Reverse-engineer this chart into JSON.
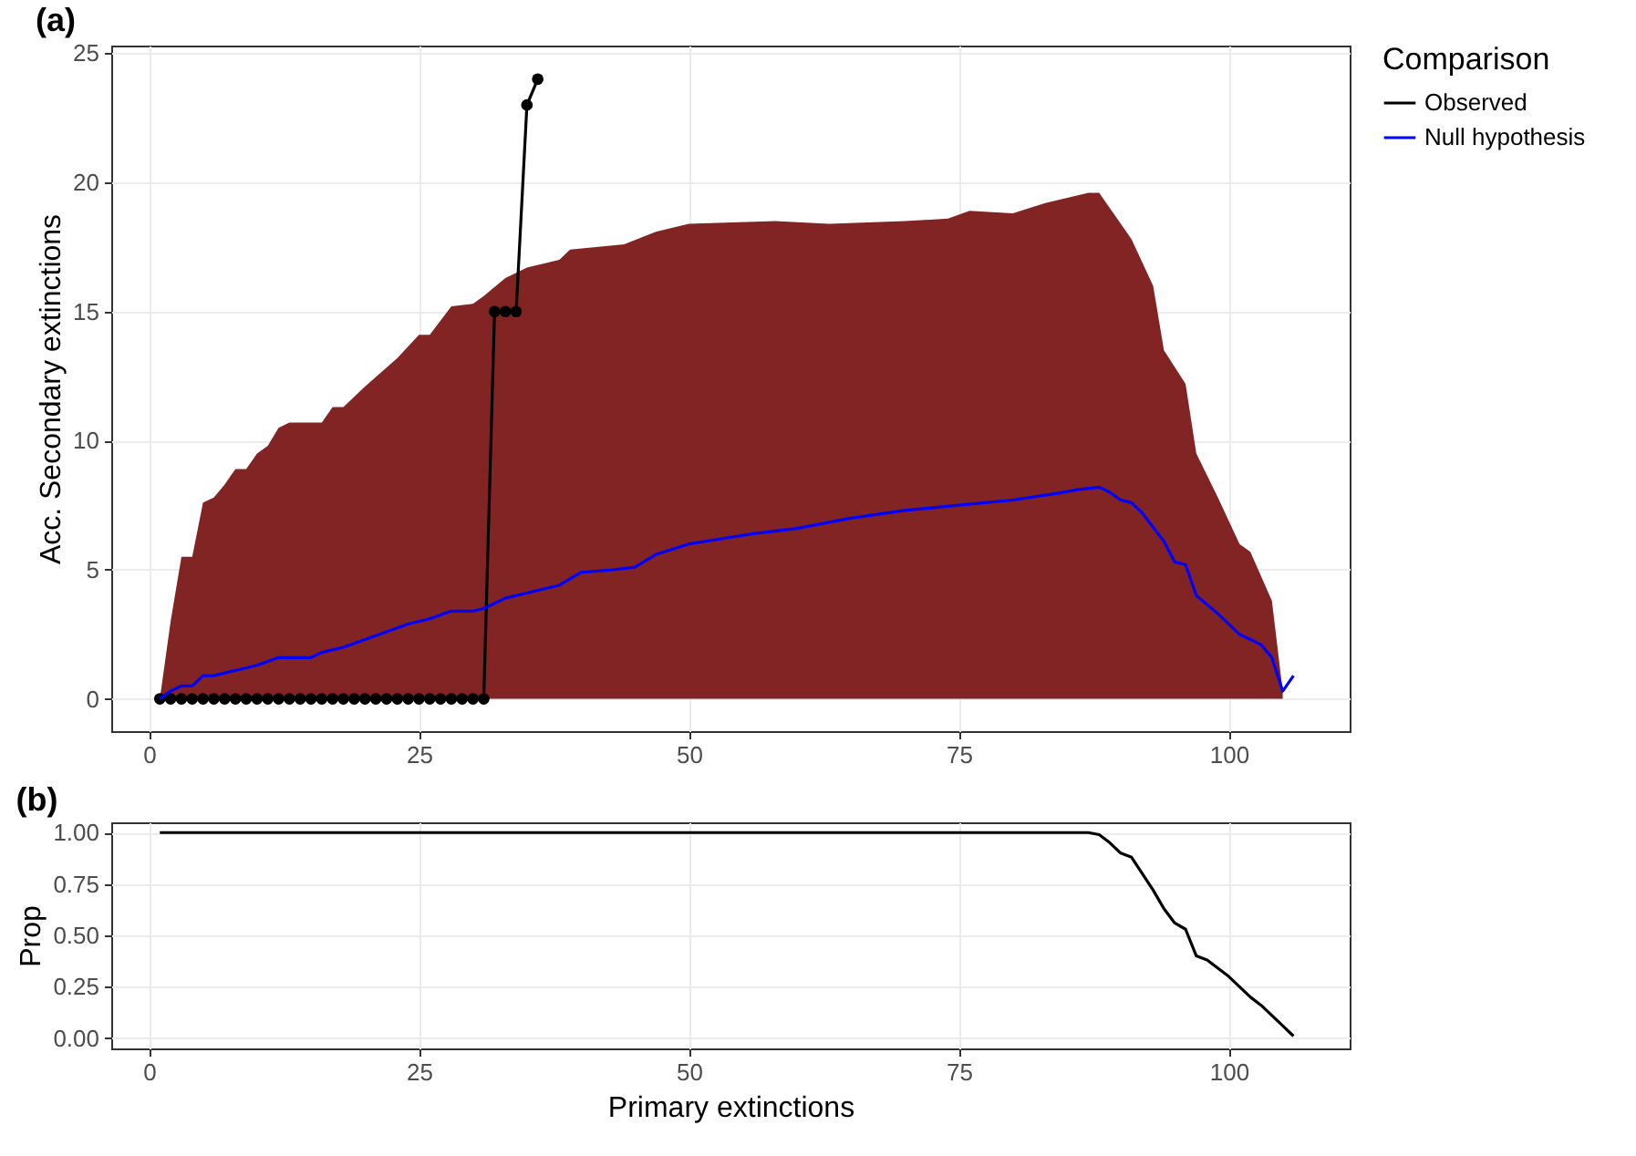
{
  "chart_data": [
    {
      "type": "line",
      "title": "(a)",
      "ylabel": "Acc. Secondary extinctions",
      "legend_title": "Comparison",
      "legend": "right",
      "grid": true,
      "xlim": [
        -3.5,
        111.2
      ],
      "xticks": [
        0,
        25,
        50,
        75,
        100
      ],
      "ylim": [
        -1.25,
        25.3
      ],
      "yticks": [
        0,
        5,
        10,
        15,
        20,
        25
      ],
      "series": [
        {
          "type": "area",
          "color": "#822424",
          "x": [
            1,
            2,
            3,
            4,
            5,
            6,
            7,
            8,
            9,
            10,
            11,
            12,
            13,
            16,
            17,
            18,
            20,
            23,
            25,
            26,
            28,
            30,
            31,
            33,
            35,
            38,
            39,
            44,
            47,
            50,
            58,
            63,
            70,
            74,
            76,
            80,
            83,
            87,
            88,
            91,
            93,
            94,
            96,
            97,
            99,
            101,
            102,
            104,
            105
          ],
          "values": [
            0,
            3,
            5.5,
            5.5,
            7.6,
            7.8,
            8.3,
            8.9,
            8.9,
            9.5,
            9.8,
            10.5,
            10.7,
            10.7,
            11.3,
            11.3,
            12.1,
            13.2,
            14.1,
            14.1,
            15.2,
            15.3,
            15.6,
            16.3,
            16.7,
            17.0,
            17.4,
            17.6,
            18.1,
            18.4,
            18.5,
            18.4,
            18.5,
            18.6,
            18.9,
            18.8,
            19.2,
            19.6,
            19.6,
            17.8,
            16.0,
            13.5,
            12.2,
            9.5,
            7.8,
            6.0,
            5.7,
            3.8,
            0.3
          ]
        },
        {
          "name": "Observed",
          "color": "#000000",
          "marker": "circle",
          "x": [
            1,
            2,
            3,
            4,
            5,
            6,
            7,
            8,
            9,
            10,
            11,
            12,
            13,
            14,
            15,
            16,
            17,
            18,
            19,
            20,
            21,
            22,
            23,
            24,
            25,
            26,
            27,
            28,
            29,
            30,
            31,
            32,
            33,
            34,
            35,
            36
          ],
          "values": [
            0,
            0,
            0,
            0,
            0,
            0,
            0,
            0,
            0,
            0,
            0,
            0,
            0,
            0,
            0,
            0,
            0,
            0,
            0,
            0,
            0,
            0,
            0,
            0,
            0,
            0,
            0,
            0,
            0,
            0,
            0,
            15,
            15,
            15,
            23,
            24
          ]
        },
        {
          "name": "Null hypothesis",
          "color": "#0000ff",
          "x": [
            1,
            2,
            3,
            4,
            5,
            6,
            8,
            10,
            12,
            15,
            16,
            18,
            20,
            22,
            24,
            26,
            28,
            30,
            31,
            33,
            35,
            37,
            38,
            40,
            43,
            45,
            47,
            50,
            53,
            56,
            60,
            65,
            70,
            75,
            80,
            84,
            86,
            88,
            89,
            90,
            91,
            92,
            94,
            95,
            96,
            97,
            99,
            101,
            103,
            104,
            105,
            106
          ],
          "values": [
            0,
            0.3,
            0.5,
            0.5,
            0.9,
            0.9,
            1.1,
            1.3,
            1.6,
            1.6,
            1.8,
            2.0,
            2.3,
            2.6,
            2.9,
            3.1,
            3.4,
            3.4,
            3.5,
            3.9,
            4.1,
            4.3,
            4.4,
            4.9,
            5.0,
            5.1,
            5.6,
            6.0,
            6.2,
            6.4,
            6.6,
            7.0,
            7.3,
            7.5,
            7.7,
            7.95,
            8.1,
            8.2,
            8.0,
            7.7,
            7.6,
            7.2,
            6.1,
            5.3,
            5.2,
            4.0,
            3.3,
            2.5,
            2.1,
            1.6,
            0.3,
            0.9
          ]
        }
      ]
    },
    {
      "type": "line",
      "title": "(b)",
      "xlabel": "Primary extinctions",
      "ylabel": "Prop",
      "grid": true,
      "xlim": [
        -3.5,
        111.2
      ],
      "xticks": [
        0,
        25,
        50,
        75,
        100
      ],
      "ylim": [
        -0.05,
        1.05
      ],
      "yticks": [
        {
          "value": 0,
          "label": "0.00"
        },
        {
          "value": 0.25,
          "label": "0.25"
        },
        {
          "value": 0.5,
          "label": "0.50"
        },
        {
          "value": 0.75,
          "label": "0.75"
        },
        {
          "value": 1,
          "label": "1.00"
        }
      ],
      "series": [
        {
          "color": "#000000",
          "x": [
            1,
            87,
            88,
            89,
            90,
            91,
            92,
            93,
            94,
            95,
            96,
            97,
            98,
            99,
            100,
            101,
            102,
            103,
            104,
            105,
            106
          ],
          "values": [
            1,
            1,
            0.99,
            0.95,
            0.9,
            0.88,
            0.8,
            0.72,
            0.63,
            0.56,
            0.53,
            0.4,
            0.38,
            0.34,
            0.3,
            0.25,
            0.2,
            0.16,
            0.11,
            0.06,
            0.01
          ]
        }
      ]
    }
  ]
}
